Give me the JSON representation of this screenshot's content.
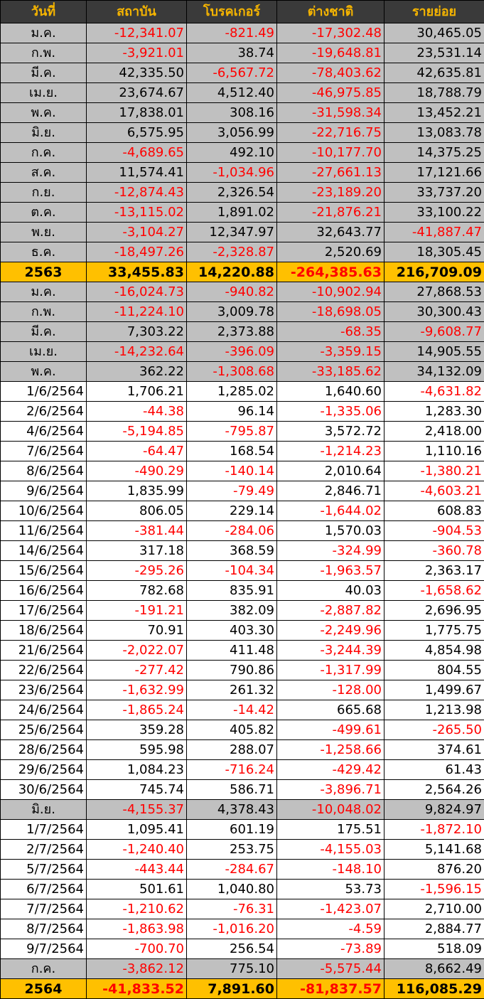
{
  "headers": [
    "วันที่",
    "สถาบัน",
    "โบรคเกอร์",
    "ต่างชาติ",
    "รายย่อย"
  ],
  "rows": [
    {
      "type": "month",
      "label": "ม.ค.",
      "values": [
        "-12,341.07",
        "-821.49",
        "-17,302.48",
        "30,465.05"
      ]
    },
    {
      "type": "month",
      "label": "ก.พ.",
      "values": [
        "-3,921.01",
        "38.74",
        "-19,648.81",
        "23,531.14"
      ]
    },
    {
      "type": "month",
      "label": "มี.ค.",
      "values": [
        "42,335.50",
        "-6,567.72",
        "-78,403.62",
        "42,635.81"
      ]
    },
    {
      "type": "month",
      "label": "เม.ย.",
      "values": [
        "23,674.67",
        "4,512.40",
        "-46,975.85",
        "18,788.79"
      ]
    },
    {
      "type": "month",
      "label": "พ.ค.",
      "values": [
        "17,838.01",
        "308.16",
        "-31,598.34",
        "13,452.21"
      ]
    },
    {
      "type": "month",
      "label": "มิ.ย.",
      "values": [
        "6,575.95",
        "3,056.99",
        "-22,716.75",
        "13,083.78"
      ]
    },
    {
      "type": "month",
      "label": "ก.ค.",
      "values": [
        "-4,689.65",
        "492.10",
        "-10,177.70",
        "14,375.25"
      ]
    },
    {
      "type": "month",
      "label": "ส.ค.",
      "values": [
        "11,574.41",
        "-1,034.96",
        "-27,661.13",
        "17,121.66"
      ]
    },
    {
      "type": "month",
      "label": "ก.ย.",
      "values": [
        "-12,874.43",
        "2,326.54",
        "-23,189.20",
        "33,737.20"
      ]
    },
    {
      "type": "month",
      "label": "ต.ค.",
      "values": [
        "-13,115.02",
        "1,891.02",
        "-21,876.21",
        "33,100.22"
      ]
    },
    {
      "type": "month",
      "label": "พ.ย.",
      "values": [
        "-3,104.27",
        "12,347.97",
        "32,643.77",
        "-41,887.47"
      ]
    },
    {
      "type": "month",
      "label": "ธ.ค.",
      "values": [
        "-18,497.26",
        "-2,328.87",
        "2,520.69",
        "18,305.45"
      ]
    },
    {
      "type": "year",
      "label": "2563",
      "values": [
        "33,455.83",
        "14,220.88",
        "-264,385.63",
        "216,709.09"
      ]
    },
    {
      "type": "month",
      "label": "ม.ค.",
      "values": [
        "-16,024.73",
        "-940.82",
        "-10,902.94",
        "27,868.53"
      ]
    },
    {
      "type": "month",
      "label": "ก.พ.",
      "values": [
        "-11,224.10",
        "3,009.78",
        "-18,698.05",
        "30,300.43"
      ]
    },
    {
      "type": "month",
      "label": "มี.ค.",
      "values": [
        "7,303.22",
        "2,373.88",
        "-68.35",
        "-9,608.77"
      ]
    },
    {
      "type": "month",
      "label": "เม.ย.",
      "values": [
        "-14,232.64",
        "-396.09",
        "-3,359.15",
        "14,905.55"
      ]
    },
    {
      "type": "month",
      "label": "พ.ค.",
      "values": [
        "362.22",
        "-1,308.68",
        "-33,185.62",
        "34,132.09"
      ]
    },
    {
      "type": "day",
      "label": "1/6/2564",
      "values": [
        "1,706.21",
        "1,285.02",
        "1,640.60",
        "-4,631.82"
      ]
    },
    {
      "type": "day",
      "label": "2/6/2564",
      "values": [
        "-44.38",
        "96.14",
        "-1,335.06",
        "1,283.30"
      ]
    },
    {
      "type": "day",
      "label": "4/6/2564",
      "values": [
        "-5,194.85",
        "-795.87",
        "3,572.72",
        "2,418.00"
      ]
    },
    {
      "type": "day",
      "label": "7/6/2564",
      "values": [
        "-64.47",
        "168.54",
        "-1,214.23",
        "1,110.16"
      ]
    },
    {
      "type": "day",
      "label": "8/6/2564",
      "values": [
        "-490.29",
        "-140.14",
        "2,010.64",
        "-1,380.21"
      ]
    },
    {
      "type": "day",
      "label": "9/6/2564",
      "values": [
        "1,835.99",
        "-79.49",
        "2,846.71",
        "-4,603.21"
      ]
    },
    {
      "type": "day",
      "label": "10/6/2564",
      "values": [
        "806.05",
        "229.14",
        "-1,644.02",
        "608.83"
      ]
    },
    {
      "type": "day",
      "label": "11/6/2564",
      "values": [
        "-381.44",
        "-284.06",
        "1,570.03",
        "-904.53"
      ]
    },
    {
      "type": "day",
      "label": "14/6/2564",
      "values": [
        "317.18",
        "368.59",
        "-324.99",
        "-360.78"
      ]
    },
    {
      "type": "day",
      "label": "15/6/2564",
      "values": [
        "-295.26",
        "-104.34",
        "-1,963.57",
        "2,363.17"
      ]
    },
    {
      "type": "day",
      "label": "16/6/2564",
      "values": [
        "782.68",
        "835.91",
        "40.03",
        "-1,658.62"
      ]
    },
    {
      "type": "day",
      "label": "17/6/2564",
      "values": [
        "-191.21",
        "382.09",
        "-2,887.82",
        "2,696.95"
      ]
    },
    {
      "type": "day",
      "label": "18/6/2564",
      "values": [
        "70.91",
        "403.30",
        "-2,249.96",
        "1,775.75"
      ]
    },
    {
      "type": "day",
      "label": "21/6/2564",
      "values": [
        "-2,022.07",
        "411.48",
        "-3,244.39",
        "4,854.98"
      ]
    },
    {
      "type": "day",
      "label": "22/6/2564",
      "values": [
        "-277.42",
        "790.86",
        "-1,317.99",
        "804.55"
      ]
    },
    {
      "type": "day",
      "label": "23/6/2564",
      "values": [
        "-1,632.99",
        "261.32",
        "-128.00",
        "1,499.67"
      ]
    },
    {
      "type": "day",
      "label": "24/6/2564",
      "values": [
        "-1,865.24",
        "-14.42",
        "665.68",
        "1,213.98"
      ]
    },
    {
      "type": "day",
      "label": "25/6/2564",
      "values": [
        "359.28",
        "405.82",
        "-499.61",
        "-265.50"
      ]
    },
    {
      "type": "day",
      "label": "28/6/2564",
      "values": [
        "595.98",
        "288.07",
        "-1,258.66",
        "374.61"
      ]
    },
    {
      "type": "day",
      "label": "29/6/2564",
      "values": [
        "1,084.23",
        "-716.24",
        "-429.42",
        "61.43"
      ]
    },
    {
      "type": "day",
      "label": "30/6/2564",
      "values": [
        "745.74",
        "586.71",
        "-3,896.71",
        "2,564.26"
      ]
    },
    {
      "type": "month",
      "label": "มิ.ย.",
      "values": [
        "-4,155.37",
        "4,378.43",
        "-10,048.02",
        "9,824.97"
      ]
    },
    {
      "type": "day",
      "label": "1/7/2564",
      "values": [
        "1,095.41",
        "601.19",
        "175.51",
        "-1,872.10"
      ]
    },
    {
      "type": "day",
      "label": "2/7/2564",
      "values": [
        "-1,240.40",
        "253.75",
        "-4,155.03",
        "5,141.68"
      ]
    },
    {
      "type": "day",
      "label": "5/7/2564",
      "values": [
        "-443.44",
        "-284.67",
        "-148.10",
        "876.20"
      ]
    },
    {
      "type": "day",
      "label": "6/7/2564",
      "values": [
        "501.61",
        "1,040.80",
        "53.73",
        "-1,596.15"
      ]
    },
    {
      "type": "day",
      "label": "7/7/2564",
      "values": [
        "-1,210.62",
        "-76.31",
        "-1,423.07",
        "2,710.00"
      ]
    },
    {
      "type": "day",
      "label": "8/7/2564",
      "values": [
        "-1,863.98",
        "-1,016.20",
        "-4.59",
        "2,884.77"
      ]
    },
    {
      "type": "day",
      "label": "9/7/2564",
      "values": [
        "-700.70",
        "256.54",
        "-73.89",
        "518.09"
      ]
    },
    {
      "type": "month",
      "label": "ก.ค.",
      "values": [
        "-3,862.12",
        "775.10",
        "-5,575.44",
        "8,662.49"
      ]
    },
    {
      "type": "year",
      "label": "2564",
      "values": [
        "-41,833.52",
        "7,891.60",
        "-81,837.57",
        "116,085.29"
      ]
    }
  ],
  "colors": {
    "header_bg": "#3a3a3a",
    "header_text": "#f5b400",
    "month_bg": "#c0c0c0",
    "year_bg": "#ffc000",
    "negative_text": "#ff0000"
  }
}
